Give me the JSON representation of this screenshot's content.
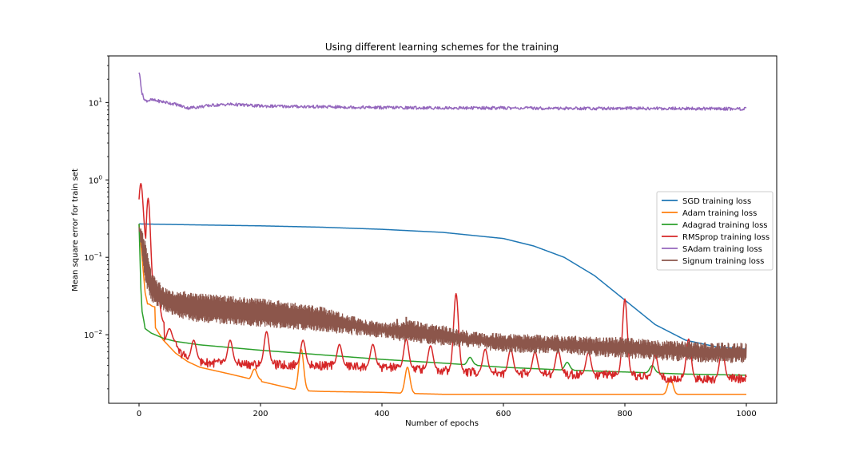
{
  "chart_data": {
    "type": "line",
    "title": "Using different learning schemes for the training",
    "xlabel": "Number of epochs",
    "ylabel": "Mean square error for train set",
    "x_ticks": [
      0,
      200,
      400,
      600,
      800,
      1000
    ],
    "x_tick_labels": [
      "0",
      "200",
      "400",
      "600",
      "800",
      "1000"
    ],
    "y_ticks": [
      0.01,
      0.1,
      1,
      10
    ],
    "y_tick_labels": [
      {
        "base": "10",
        "exp": "−2"
      },
      {
        "base": "10",
        "exp": "−1"
      },
      {
        "base": "10",
        "exp": "0"
      },
      {
        "base": "10",
        "exp": "1"
      }
    ],
    "y_scale": "log",
    "xlim": [
      -50,
      1050
    ],
    "ylim": [
      0.0013,
      40
    ],
    "grid": false,
    "legend_position": "center-right",
    "series": [
      {
        "name": "SGD training loss",
        "color": "#1f77b4",
        "x": [
          0,
          100,
          200,
          300,
          400,
          500,
          600,
          650,
          700,
          750,
          800,
          850,
          900,
          950,
          1000
        ],
        "y": [
          0.27,
          0.262,
          0.255,
          0.245,
          0.23,
          0.21,
          0.175,
          0.14,
          0.1,
          0.058,
          0.028,
          0.0135,
          0.0085,
          0.007,
          0.0065
        ],
        "noise_amp": 0,
        "spikes": []
      },
      {
        "name": "Adam training loss",
        "color": "#ff7f0e",
        "x": [
          0,
          5,
          10,
          20,
          40,
          60,
          80,
          100,
          150,
          200,
          265,
          300,
          400,
          440,
          500,
          600,
          700,
          800,
          875,
          900,
          1000
        ],
        "y": [
          0.27,
          0.1,
          0.035,
          0.015,
          0.0085,
          0.0058,
          0.0045,
          0.0038,
          0.0031,
          0.0025,
          0.0019,
          0.00185,
          0.0018,
          0.00175,
          0.0017,
          0.0017,
          0.0017,
          0.0017,
          0.0017,
          0.0017,
          0.0017
        ],
        "noise_amp": 0,
        "spikes": [
          {
            "x": 15,
            "y": 0.025
          },
          {
            "x": 190,
            "y": 0.0036
          },
          {
            "x": 267,
            "y": 0.0065
          },
          {
            "x": 442,
            "y": 0.0038
          },
          {
            "x": 875,
            "y": 0.0028
          }
        ]
      },
      {
        "name": "Adagrad training loss",
        "color": "#2ca02c",
        "x": [
          0,
          3,
          5,
          8,
          10,
          20,
          40,
          60,
          100,
          200,
          300,
          400,
          500,
          600,
          700,
          800,
          900,
          1000
        ],
        "y": [
          0.27,
          0.04,
          0.02,
          0.015,
          0.012,
          0.0105,
          0.009,
          0.0082,
          0.0074,
          0.0063,
          0.0055,
          0.0048,
          0.0043,
          0.0038,
          0.0035,
          0.0033,
          0.0031,
          0.003
        ],
        "noise_amp": 0,
        "spikes": [
          {
            "x": 545,
            "y": 0.0051
          },
          {
            "x": 705,
            "y": 0.0044
          },
          {
            "x": 845,
            "y": 0.004
          }
        ]
      },
      {
        "name": "RMSprop training loss",
        "color": "#d62728",
        "x": [
          0,
          5,
          10,
          20,
          40,
          60,
          80,
          100,
          200,
          300,
          400,
          500,
          540,
          600,
          700,
          800,
          850,
          900,
          1000
        ],
        "y": [
          0.27,
          0.08,
          0.04,
          0.02,
          0.01,
          0.0065,
          0.005,
          0.0044,
          0.0041,
          0.004,
          0.0038,
          0.0035,
          0.0033,
          0.0032,
          0.0031,
          0.003,
          0.0028,
          0.0027,
          0.0027
        ],
        "noise_amp": 0.12,
        "spikes": [
          {
            "x": 3,
            "y": 0.9
          },
          {
            "x": 15,
            "y": 0.58
          },
          {
            "x": 30,
            "y": 0.04
          },
          {
            "x": 50,
            "y": 0.012
          },
          {
            "x": 90,
            "y": 0.0085
          },
          {
            "x": 150,
            "y": 0.0085
          },
          {
            "x": 210,
            "y": 0.011
          },
          {
            "x": 270,
            "y": 0.0085
          },
          {
            "x": 330,
            "y": 0.0075
          },
          {
            "x": 385,
            "y": 0.0075
          },
          {
            "x": 440,
            "y": 0.0088
          },
          {
            "x": 480,
            "y": 0.0072
          },
          {
            "x": 522,
            "y": 0.034
          },
          {
            "x": 570,
            "y": 0.0065
          },
          {
            "x": 612,
            "y": 0.0065
          },
          {
            "x": 652,
            "y": 0.006
          },
          {
            "x": 690,
            "y": 0.0063
          },
          {
            "x": 740,
            "y": 0.0059
          },
          {
            "x": 800,
            "y": 0.029
          },
          {
            "x": 850,
            "y": 0.0055
          },
          {
            "x": 905,
            "y": 0.0088
          },
          {
            "x": 960,
            "y": 0.0065
          }
        ]
      },
      {
        "name": "SAdam training loss",
        "color": "#9467bd",
        "x": [
          0,
          2,
          5,
          10,
          20,
          40,
          60,
          80,
          100,
          120,
          150,
          200,
          300,
          400,
          500,
          600,
          700,
          800,
          900,
          1000
        ],
        "y": [
          25,
          20,
          13,
          10.5,
          10.8,
          10.2,
          9.5,
          8.5,
          8.8,
          9.2,
          9.5,
          9.0,
          8.8,
          8.6,
          8.5,
          8.5,
          8.4,
          8.4,
          8.35,
          8.3
        ],
        "noise_amp": 0.04,
        "spikes": []
      },
      {
        "name": "Signum training loss",
        "color": "#8c564b",
        "band": true,
        "x": [
          0,
          10,
          20,
          40,
          60,
          80,
          100,
          150,
          200,
          250,
          300,
          350,
          400,
          450,
          500,
          550,
          600,
          650,
          700,
          750,
          800,
          850,
          900,
          950,
          1000
        ],
        "y_low": [
          0.25,
          0.05,
          0.03,
          0.022,
          0.019,
          0.017,
          0.016,
          0.015,
          0.014,
          0.013,
          0.012,
          0.011,
          0.01,
          0.0085,
          0.008,
          0.0075,
          0.0065,
          0.0064,
          0.0062,
          0.0058,
          0.0055,
          0.0052,
          0.005,
          0.0048,
          0.0048
        ],
        "y_high": [
          0.27,
          0.15,
          0.06,
          0.038,
          0.034,
          0.033,
          0.031,
          0.029,
          0.027,
          0.024,
          0.021,
          0.016,
          0.013,
          0.014,
          0.012,
          0.01,
          0.0095,
          0.0092,
          0.009,
          0.0085,
          0.0085,
          0.0078,
          0.0075,
          0.0072,
          0.0072
        ],
        "spikes": [
          {
            "x": 280,
            "y": 0.022
          },
          {
            "x": 325,
            "y": 0.019
          },
          {
            "x": 425,
            "y": 0.016
          },
          {
            "x": 440,
            "y": 0.017
          }
        ]
      }
    ]
  }
}
